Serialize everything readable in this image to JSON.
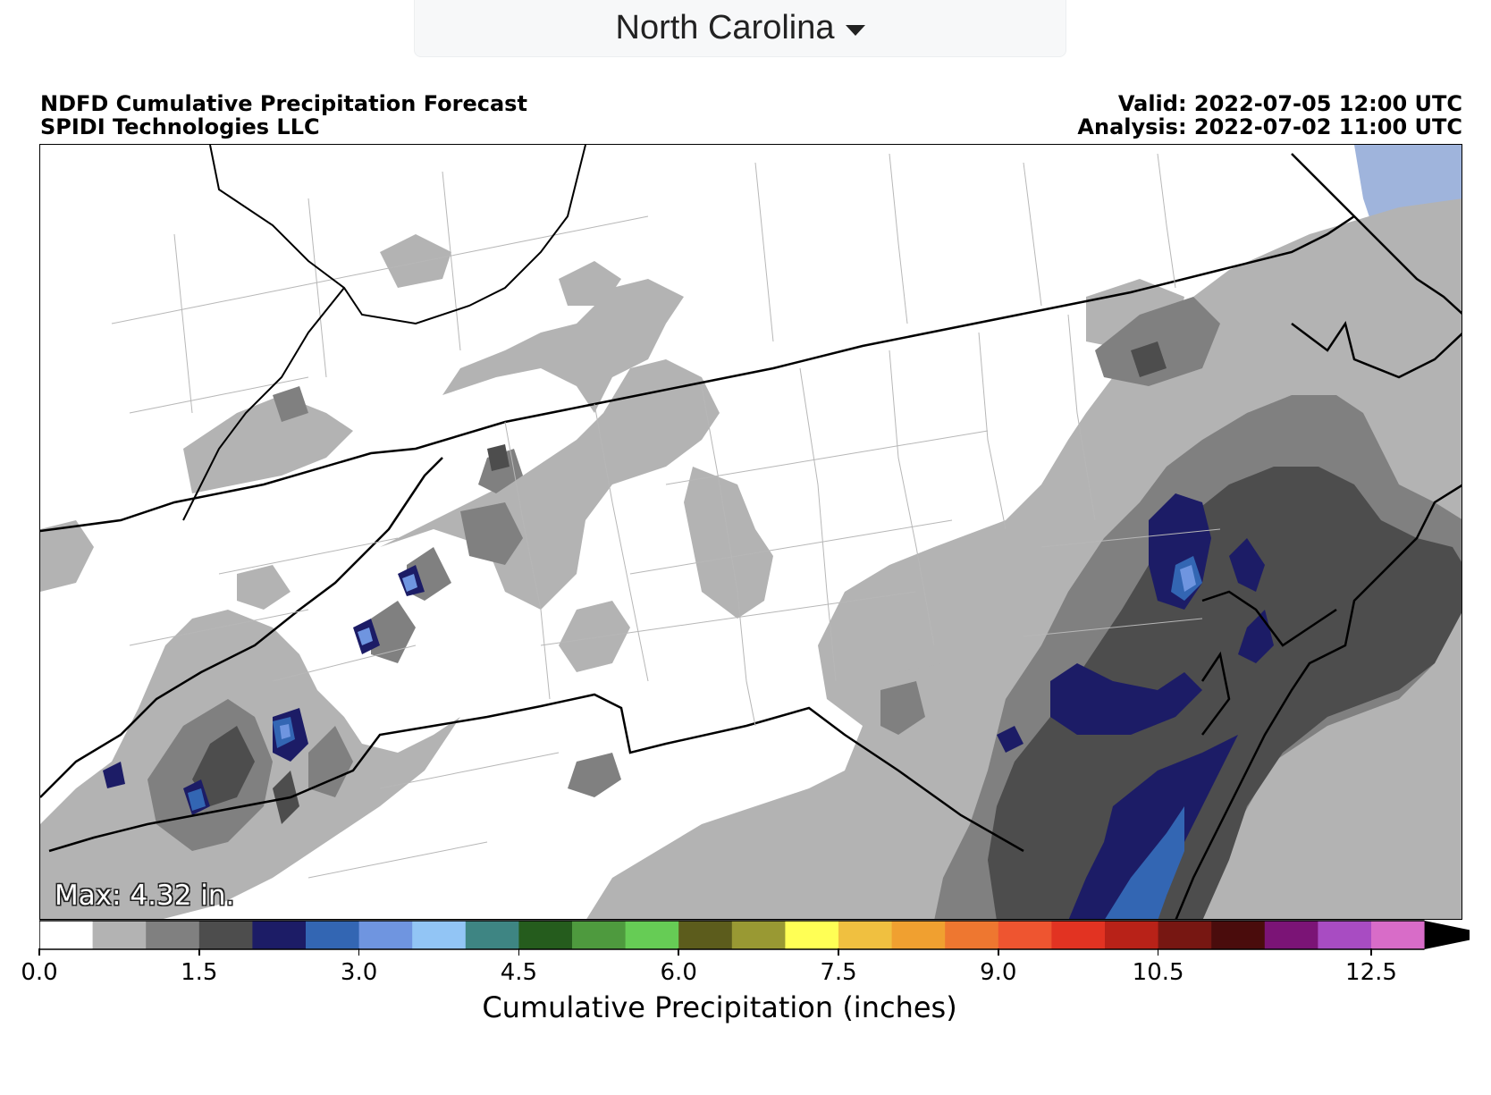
{
  "selector": {
    "state": "North Carolina"
  },
  "header": {
    "title": "NDFD Cumulative Precipitation Forecast",
    "org": "SPIDI Technologies LLC",
    "valid": "Valid: 2022-07-05 12:00 UTC",
    "analysis": "Analysis: 2022-07-02 11:00 UTC"
  },
  "map": {
    "max_label": "Max: 4.32 in.",
    "icons": [
      "state-border-lines",
      "county-border-lines",
      "coastline",
      "ocean"
    ],
    "colors": {
      "ocean": "#9fb4dc",
      "land": "#ffffff"
    }
  },
  "colorbar": {
    "label": "Cumulative Precipitation (inches)",
    "ticks": [
      "0.0",
      "1.5",
      "3.0",
      "4.5",
      "6.0",
      "7.5",
      "9.0",
      "10.5",
      "12.5"
    ],
    "tick_values": [
      0.0,
      1.5,
      3.0,
      4.5,
      6.0,
      7.5,
      9.0,
      10.5,
      12.5
    ],
    "step": 0.5,
    "min": 0.0,
    "max": 13.0,
    "extend": "max",
    "colors": [
      "#ffffff",
      "#b3b3b3",
      "#808080",
      "#4d4d4d",
      "#1c1c66",
      "#3366b3",
      "#6f95e0",
      "#92c5f5",
      "#3e8583",
      "#255c1d",
      "#4e9a3e",
      "#66cc55",
      "#5c5c1c",
      "#999933",
      "#ffff55",
      "#f0c040",
      "#f0a030",
      "#ee7730",
      "#ee5530",
      "#e23322",
      "#b82218",
      "#771712",
      "#4a0c0c",
      "#7b1476",
      "#a84cc2",
      "#d86cc8"
    ],
    "extend_color": "#000000"
  }
}
